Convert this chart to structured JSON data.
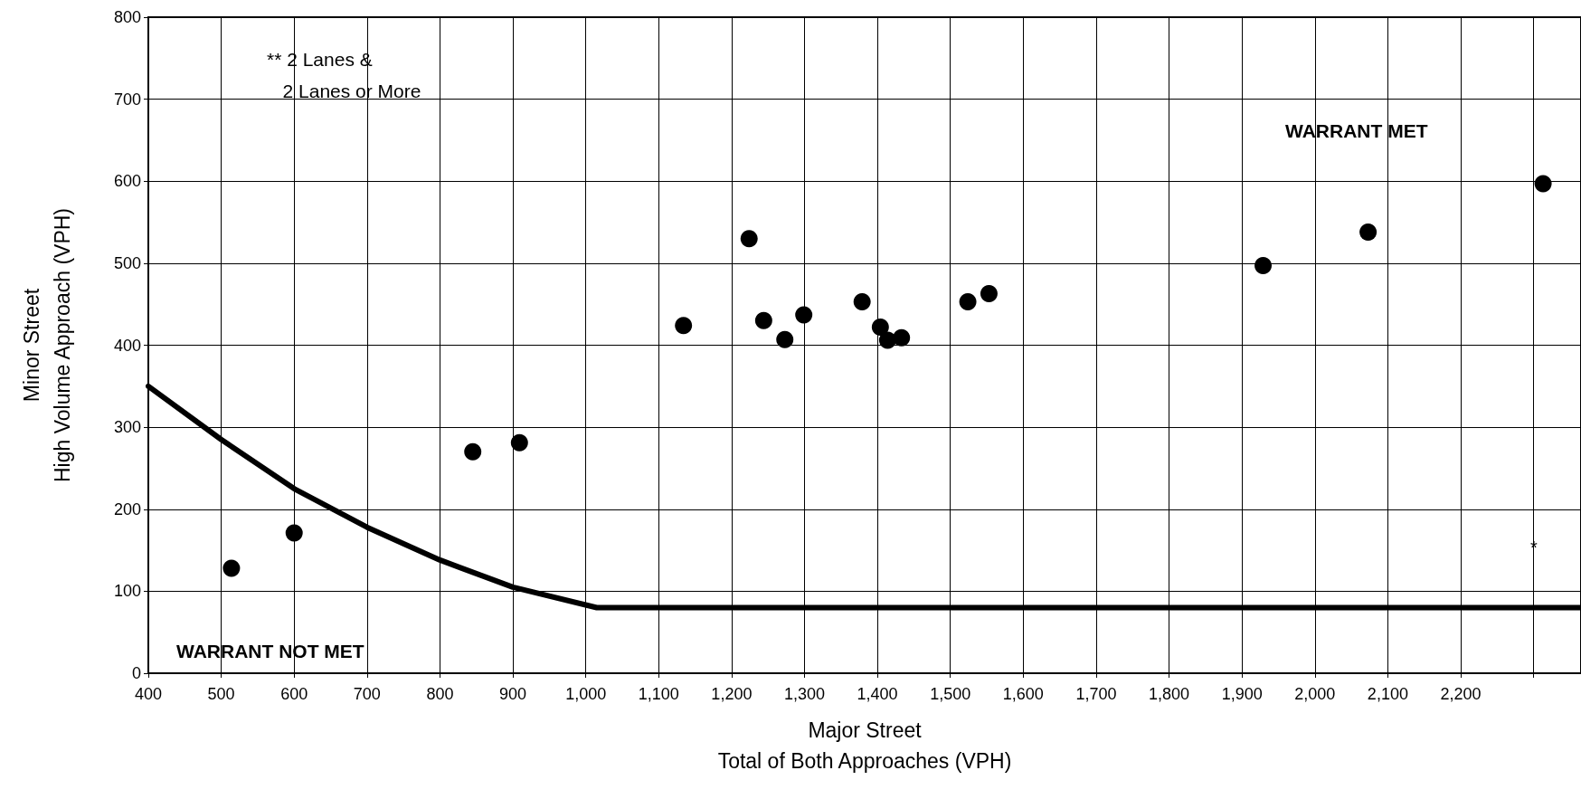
{
  "chart_data": {
    "type": "scatter",
    "xlabel": "Major Street\nTotal of Both Approaches (VPH)",
    "ylabel": "Minor Street\nHigh Volume Approach (VPH)",
    "xlim": [
      400,
      2365
    ],
    "xticks": [
      {
        "value": 400,
        "label": "400"
      },
      {
        "value": 500,
        "label": "500"
      },
      {
        "value": 600,
        "label": "600"
      },
      {
        "value": 700,
        "label": "700"
      },
      {
        "value": 800,
        "label": "800"
      },
      {
        "value": 900,
        "label": "900"
      },
      {
        "value": 1000,
        "label": "1,000"
      },
      {
        "value": 1100,
        "label": "1,100"
      },
      {
        "value": 1200,
        "label": "1,200"
      },
      {
        "value": 1300,
        "label": "1,300"
      },
      {
        "value": 1400,
        "label": "1,400"
      },
      {
        "value": 1500,
        "label": "1,500"
      },
      {
        "value": 1600,
        "label": "1,600"
      },
      {
        "value": 1700,
        "label": "1,700"
      },
      {
        "value": 1800,
        "label": "1,800"
      },
      {
        "value": 1900,
        "label": "1,900"
      },
      {
        "value": 2000,
        "label": "2,000"
      },
      {
        "value": 2100,
        "label": "2,100"
      },
      {
        "value": 2200,
        "label": "2,200"
      },
      {
        "value": 2300,
        "label": null
      }
    ],
    "ylim": [
      0,
      800
    ],
    "yticks": [
      0,
      100,
      200,
      300,
      400,
      500,
      600,
      700,
      800
    ],
    "grid": true,
    "series": [
      {
        "type": "line",
        "color": "#000000",
        "marker": "none",
        "line_style": "solid",
        "x": [
          400,
          500,
          600,
          700,
          800,
          900,
          1015,
          2365
        ],
        "values": [
          350,
          285,
          225,
          178,
          138,
          105,
          80,
          80
        ]
      },
      {
        "type": "scatter",
        "color": "#000000",
        "marker": "circle",
        "x": [
          514,
          600,
          845,
          909,
          1134,
          1224,
          1244,
          1273,
          1299,
          1379,
          1404,
          1414,
          1433,
          1524,
          1553,
          1929,
          2073,
          2313
        ],
        "values": [
          128,
          171,
          270,
          281,
          424,
          530,
          430,
          407,
          437,
          453,
          422,
          406,
          409,
          453,
          463,
          497,
          538,
          597
        ]
      }
    ],
    "annotations": [
      "** 2 Lanes &\n   2 Lanes or More",
      "WARRANT MET",
      "WARRANT NOT MET",
      "*"
    ]
  }
}
